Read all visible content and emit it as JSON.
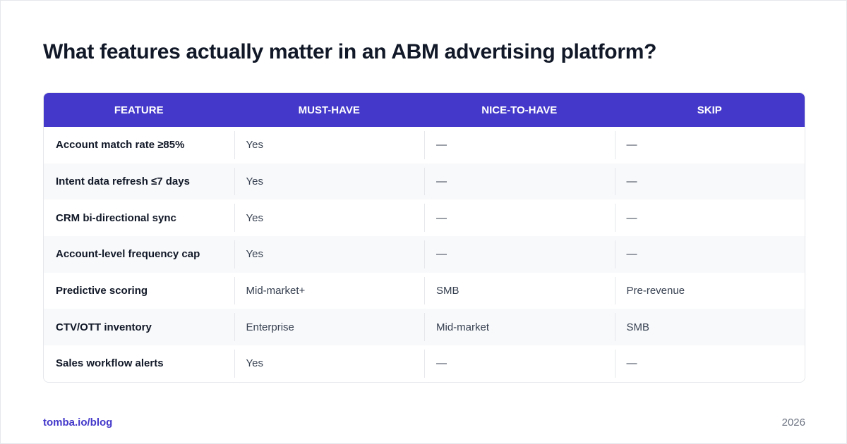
{
  "title": "What features actually matter in an ABM advertising platform?",
  "table": {
    "header": [
      "FEATURE",
      "MUST-HAVE",
      "NICE-TO-HAVE",
      "SKIP"
    ],
    "rows": [
      [
        "Account match rate ≥85%",
        "Yes",
        "—",
        "—"
      ],
      [
        "Intent data refresh ≤7 days",
        "Yes",
        "—",
        "—"
      ],
      [
        "CRM bi-directional sync",
        "Yes",
        "—",
        "—"
      ],
      [
        "Account-level frequency cap",
        "Yes",
        "—",
        "—"
      ],
      [
        "Predictive scoring",
        "Mid-market+",
        "SMB",
        "Pre-revenue"
      ],
      [
        "CTV/OTT inventory",
        "Enterprise",
        "Mid-market",
        "SMB"
      ],
      [
        "Sales workflow alerts",
        "Yes",
        "—",
        "—"
      ]
    ]
  },
  "footer": {
    "source": "tomba.io/blog",
    "year": "2026"
  }
}
